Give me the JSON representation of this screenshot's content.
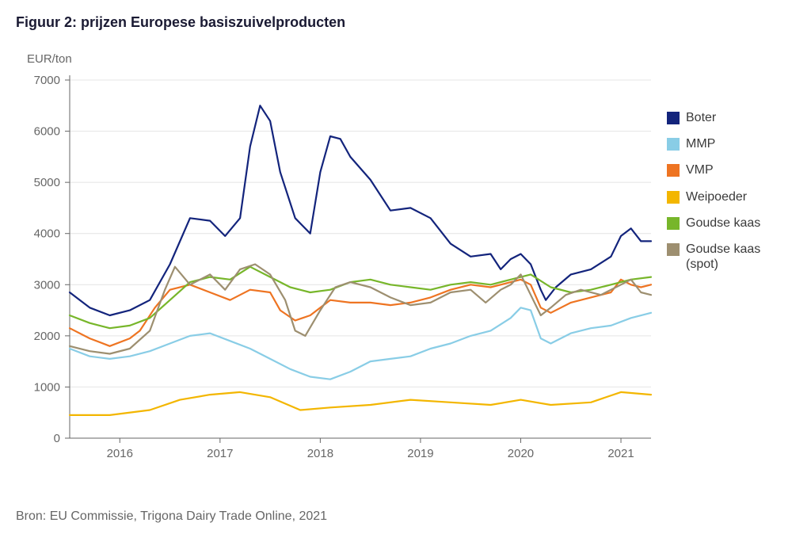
{
  "title": "Figuur 2: prijzen Europese basiszuivelproducten",
  "source": "Bron: EU Commissie, Trigona Dairy Trade Online, 2021",
  "chart": {
    "type": "line",
    "ylabel": "EUR/ton",
    "ylim": [
      0,
      7000
    ],
    "ytick_step": 1000,
    "x_start": 2015.5,
    "x_end": 2021.3,
    "xticks": [
      2016,
      2017,
      2018,
      2019,
      2020,
      2021
    ],
    "background_color": "#ffffff",
    "grid_color": "#e4e4e4",
    "axis_color": "#666666",
    "label_fontsize": 15,
    "tick_fontsize": 15,
    "line_width": 2.2,
    "axis_label_color": "#666666"
  },
  "legend": {
    "items": [
      {
        "label": "Boter",
        "color": "#13247c"
      },
      {
        "label": "MMP",
        "color": "#89cde6"
      },
      {
        "label": "VMP",
        "color": "#ee7422"
      },
      {
        "label": "Weipoeder",
        "color": "#f3b600"
      },
      {
        "label": "Goudse kaas",
        "color": "#77b62a"
      },
      {
        "label": "Goudse kaas (spot)",
        "color": "#9d8f70"
      }
    ]
  },
  "series": [
    {
      "name": "Boter",
      "color": "#13247c",
      "x": [
        2015.5,
        2015.7,
        2015.9,
        2016.1,
        2016.3,
        2016.5,
        2016.7,
        2016.9,
        2017.05,
        2017.2,
        2017.3,
        2017.4,
        2017.5,
        2017.6,
        2017.75,
        2017.9,
        2018.0,
        2018.1,
        2018.2,
        2018.3,
        2018.5,
        2018.7,
        2018.9,
        2019.1,
        2019.3,
        2019.5,
        2019.7,
        2019.8,
        2019.9,
        2020.0,
        2020.1,
        2020.2,
        2020.25,
        2020.35,
        2020.5,
        2020.7,
        2020.9,
        2021.0,
        2021.1,
        2021.2,
        2021.3
      ],
      "y": [
        2850,
        2550,
        2400,
        2500,
        2700,
        3400,
        4300,
        4250,
        3950,
        4300,
        5700,
        6500,
        6200,
        5200,
        4300,
        4000,
        5200,
        5900,
        5850,
        5500,
        5050,
        4450,
        4500,
        4300,
        3800,
        3550,
        3600,
        3300,
        3500,
        3600,
        3400,
        2900,
        2700,
        2950,
        3200,
        3300,
        3550,
        3950,
        4100,
        3850,
        3850
      ]
    },
    {
      "name": "MMP",
      "color": "#89cde6",
      "x": [
        2015.5,
        2015.7,
        2015.9,
        2016.1,
        2016.3,
        2016.5,
        2016.7,
        2016.9,
        2017.1,
        2017.3,
        2017.5,
        2017.7,
        2017.9,
        2018.1,
        2018.3,
        2018.5,
        2018.7,
        2018.9,
        2019.1,
        2019.3,
        2019.5,
        2019.7,
        2019.9,
        2020.0,
        2020.1,
        2020.2,
        2020.3,
        2020.5,
        2020.7,
        2020.9,
        2021.1,
        2021.3
      ],
      "y": [
        1750,
        1600,
        1550,
        1600,
        1700,
        1850,
        2000,
        2050,
        1900,
        1750,
        1550,
        1350,
        1200,
        1150,
        1300,
        1500,
        1550,
        1600,
        1750,
        1850,
        2000,
        2100,
        2350,
        2550,
        2500,
        1950,
        1850,
        2050,
        2150,
        2200,
        2350,
        2450
      ]
    },
    {
      "name": "VMP",
      "color": "#ee7422",
      "x": [
        2015.5,
        2015.7,
        2015.9,
        2016.1,
        2016.2,
        2016.35,
        2016.5,
        2016.7,
        2016.9,
        2017.1,
        2017.3,
        2017.5,
        2017.6,
        2017.75,
        2017.9,
        2018.1,
        2018.3,
        2018.5,
        2018.7,
        2018.9,
        2019.1,
        2019.3,
        2019.5,
        2019.7,
        2019.9,
        2020.0,
        2020.1,
        2020.2,
        2020.3,
        2020.5,
        2020.7,
        2020.9,
        2021.0,
        2021.1,
        2021.2,
        2021.3
      ],
      "y": [
        2150,
        1950,
        1800,
        1950,
        2100,
        2550,
        2900,
        3000,
        2850,
        2700,
        2900,
        2850,
        2500,
        2300,
        2400,
        2700,
        2650,
        2650,
        2600,
        2650,
        2750,
        2900,
        3000,
        2950,
        3050,
        3100,
        3000,
        2550,
        2450,
        2650,
        2750,
        2850,
        3100,
        3000,
        2950,
        3000
      ]
    },
    {
      "name": "Weipoeder",
      "color": "#f3b600",
      "x": [
        2015.5,
        2015.9,
        2016.3,
        2016.6,
        2016.9,
        2017.2,
        2017.5,
        2017.8,
        2018.1,
        2018.5,
        2018.9,
        2019.3,
        2019.7,
        2020.0,
        2020.3,
        2020.7,
        2021.0,
        2021.3
      ],
      "y": [
        450,
        450,
        550,
        750,
        850,
        900,
        800,
        550,
        600,
        650,
        750,
        700,
        650,
        750,
        650,
        700,
        900,
        850
      ]
    },
    {
      "name": "Goudse kaas",
      "color": "#77b62a",
      "x": [
        2015.5,
        2015.7,
        2015.9,
        2016.1,
        2016.3,
        2016.5,
        2016.7,
        2016.9,
        2017.1,
        2017.3,
        2017.5,
        2017.7,
        2017.9,
        2018.1,
        2018.3,
        2018.5,
        2018.7,
        2018.9,
        2019.1,
        2019.3,
        2019.5,
        2019.7,
        2019.9,
        2020.1,
        2020.3,
        2020.5,
        2020.7,
        2020.9,
        2021.1,
        2021.3
      ],
      "y": [
        2400,
        2250,
        2150,
        2200,
        2350,
        2700,
        3050,
        3150,
        3100,
        3350,
        3150,
        2950,
        2850,
        2900,
        3050,
        3100,
        3000,
        2950,
        2900,
        3000,
        3050,
        3000,
        3100,
        3200,
        2950,
        2850,
        2900,
        3000,
        3100,
        3150
      ]
    },
    {
      "name": "Goudse kaas (spot)",
      "color": "#9d8f70",
      "x": [
        2015.5,
        2015.7,
        2015.9,
        2016.1,
        2016.3,
        2016.45,
        2016.55,
        2016.7,
        2016.9,
        2017.05,
        2017.2,
        2017.35,
        2017.5,
        2017.65,
        2017.75,
        2017.85,
        2018.0,
        2018.15,
        2018.3,
        2018.5,
        2018.7,
        2018.9,
        2019.1,
        2019.3,
        2019.5,
        2019.65,
        2019.8,
        2019.9,
        2020.0,
        2020.1,
        2020.2,
        2020.3,
        2020.45,
        2020.6,
        2020.8,
        2021.0,
        2021.1,
        2021.2,
        2021.3
      ],
      "y": [
        1800,
        1700,
        1650,
        1750,
        2100,
        2900,
        3350,
        3000,
        3200,
        2900,
        3300,
        3400,
        3200,
        2700,
        2100,
        2000,
        2500,
        2950,
        3050,
        2950,
        2750,
        2600,
        2650,
        2850,
        2900,
        2650,
        2900,
        3000,
        3200,
        2800,
        2400,
        2550,
        2800,
        2900,
        2800,
        3000,
        3100,
        2850,
        2800
      ]
    }
  ]
}
